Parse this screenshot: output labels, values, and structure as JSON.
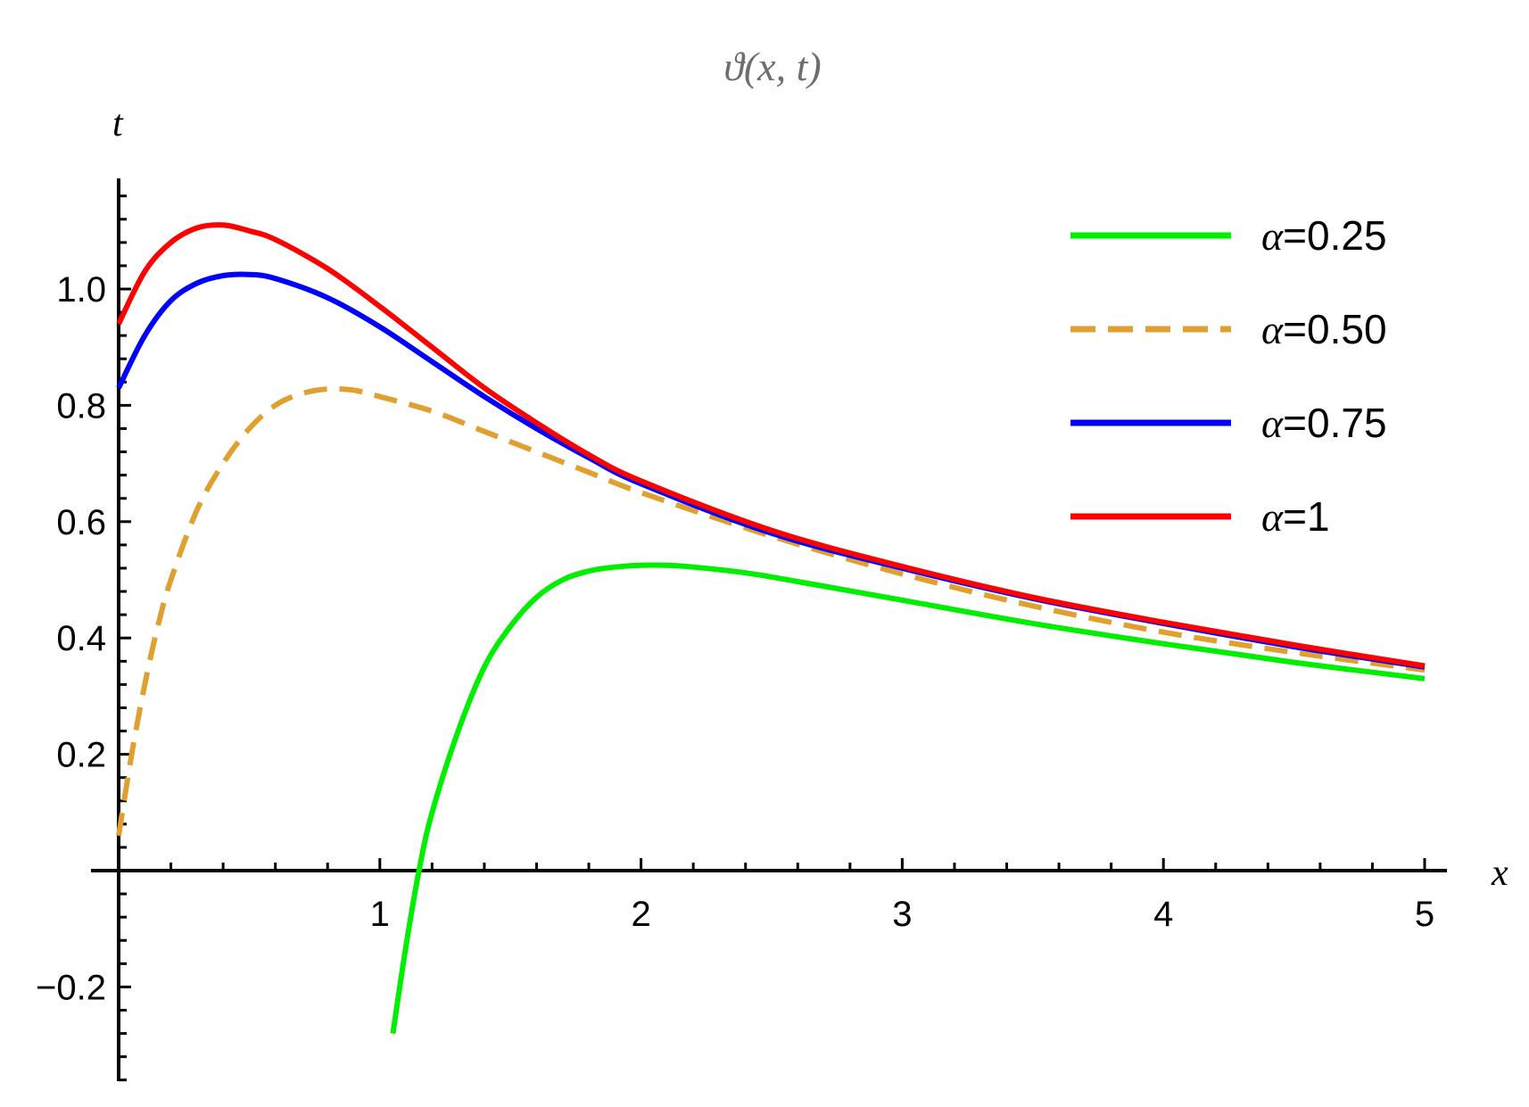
{
  "chart_data": {
    "type": "line",
    "title": "ϑ(x, t)",
    "xlabel": "x",
    "ylabel": "t",
    "xlim": [
      0,
      5
    ],
    "ylim": [
      -0.36,
      1.18
    ],
    "x_ticks": [
      1,
      2,
      3,
      4,
      5
    ],
    "x_tick_labels": [
      "1",
      "2",
      "3",
      "4",
      "5"
    ],
    "y_ticks": [
      -0.2,
      0.2,
      0.4,
      0.6,
      0.8,
      1.0
    ],
    "y_tick_labels": [
      "−0.2",
      "0.2",
      "0.4",
      "0.6",
      "0.8",
      "1.0"
    ],
    "legend_position": "top-right",
    "grid": false,
    "series": [
      {
        "name": "α=0.25",
        "color": "#00ee00",
        "dashed": false,
        "x": [
          1.05,
          1.1,
          1.15,
          1.2,
          1.3,
          1.4,
          1.5,
          1.6,
          1.7,
          1.8,
          1.9,
          2.0,
          2.1,
          2.2,
          2.4,
          2.6,
          2.8,
          3.0,
          3.5,
          4.0,
          4.5,
          5.0
        ],
        "y": [
          -0.28,
          -0.13,
          0.0,
          0.1,
          0.24,
          0.35,
          0.42,
          0.47,
          0.5,
          0.515,
          0.522,
          0.525,
          0.525,
          0.522,
          0.512,
          0.497,
          0.481,
          0.465,
          0.425,
          0.39,
          0.358,
          0.33
        ]
      },
      {
        "name": "α=0.50",
        "color": "#e0a030",
        "dashed": true,
        "x": [
          0.0,
          0.05,
          0.1,
          0.15,
          0.2,
          0.3,
          0.4,
          0.5,
          0.6,
          0.7,
          0.8,
          0.9,
          1.0,
          1.2,
          1.4,
          1.6,
          1.8,
          2.0,
          2.5,
          3.0,
          3.5,
          4.0,
          4.5,
          5.0
        ],
        "y": [
          0.06,
          0.2,
          0.32,
          0.42,
          0.5,
          0.62,
          0.7,
          0.76,
          0.8,
          0.82,
          0.828,
          0.826,
          0.815,
          0.79,
          0.755,
          0.72,
          0.685,
          0.65,
          0.575,
          0.51,
          0.455,
          0.41,
          0.375,
          0.345
        ]
      },
      {
        "name": "α=0.75",
        "color": "#0000ff",
        "dashed": false,
        "x": [
          0.0,
          0.1,
          0.2,
          0.3,
          0.4,
          0.5,
          0.6,
          0.8,
          1.0,
          1.2,
          1.4,
          1.6,
          1.8,
          2.0,
          2.5,
          3.0,
          3.5,
          4.0,
          4.5,
          5.0
        ],
        "y": [
          0.83,
          0.92,
          0.98,
          1.01,
          1.023,
          1.025,
          1.018,
          0.985,
          0.935,
          0.875,
          0.815,
          0.76,
          0.71,
          0.665,
          0.58,
          0.52,
          0.468,
          0.425,
          0.385,
          0.35
        ]
      },
      {
        "name": "α=1",
        "color": "#ff0000",
        "dashed": false,
        "x": [
          0.0,
          0.1,
          0.2,
          0.3,
          0.4,
          0.5,
          0.6,
          0.8,
          1.0,
          1.2,
          1.4,
          1.6,
          1.8,
          2.0,
          2.5,
          3.0,
          3.5,
          4.0,
          4.5,
          5.0
        ],
        "y": [
          0.94,
          1.03,
          1.08,
          1.105,
          1.11,
          1.1,
          1.085,
          1.035,
          0.97,
          0.9,
          0.83,
          0.77,
          0.715,
          0.67,
          0.585,
          0.523,
          0.47,
          0.427,
          0.388,
          0.352
        ]
      }
    ]
  }
}
